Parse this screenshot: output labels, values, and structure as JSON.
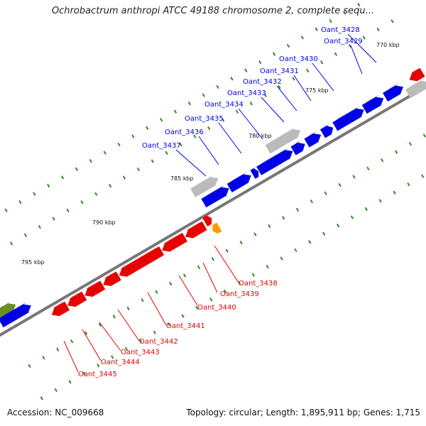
{
  "title": "Ochrobactrum anthropi ATCC 49188 chromosome 2, complete sequ...",
  "footer": {
    "accession": "Accession: NC_009668",
    "topology": "Topology: circular; Length: 1,895,911 bp; Genes: 1,715"
  },
  "scale_labels": [
    "770 kbp",
    "775 kbp",
    "780 kbp",
    "785 kbp",
    "790 kbp",
    "795 kbp"
  ],
  "colors": {
    "forward": "#0000e6",
    "reverse": "#e60000",
    "gray": "#bbbbbb",
    "orange": "#ff9900",
    "olive": "#6b8e23",
    "backbone": "#777777",
    "tick": "#2e8b22"
  },
  "gene_labels": {
    "forward": [
      "Oant_3428",
      "Oant_3429",
      "Oant_3430",
      "Oant_3431",
      "Oant_3432",
      "Oant_3433",
      "Oant_3434",
      "Oant_3435",
      "Oant_3436",
      "Oant_3437"
    ],
    "reverse": [
      "Oant_3438",
      "Oant_3439",
      "Oant_3440",
      "Oant_3441",
      "Oant_3442",
      "Oant_3443",
      "Oant_3444",
      "Oant_3445"
    ]
  }
}
